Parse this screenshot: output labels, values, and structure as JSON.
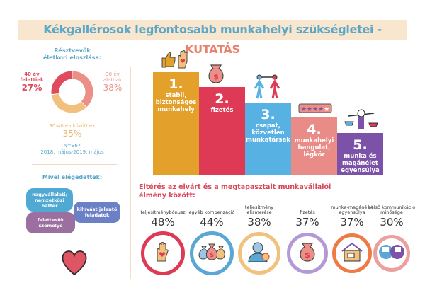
{
  "title": {
    "main": "Kékgallérosok legfontosabb munkahelyi szükségletei - ",
    "accent": "KUTATÁS"
  },
  "age": {
    "heading_1": "Résztvevők",
    "heading_2": "életkori eloszlása:",
    "segments": [
      {
        "label_1": "30 év",
        "label_2": "alattiak",
        "value": "38%",
        "pct": 38,
        "color": "#ec8f86"
      },
      {
        "label_1": "30-40 év közöttiek",
        "label_2": "",
        "value": "35%",
        "pct": 35,
        "color": "#f2c07e"
      },
      {
        "label_1": "40 év",
        "label_2": "felettiek",
        "value": "27%",
        "pct": 27,
        "color": "#e04a5e"
      }
    ],
    "n": "N=967",
    "period": "2018. május-2019. május"
  },
  "satisfied": {
    "heading": "Mivel elégedettek:",
    "items": [
      "nagyvállalati/ nemzetközi háttér",
      "kihívást jelentő feladatok",
      "felettesük személye"
    ]
  },
  "ranking": [
    {
      "num": "1.",
      "label": "stabil, biztonságos munkahely",
      "color": "#e3a02b",
      "icon": "thumbs-up-hand-heart-icon"
    },
    {
      "num": "2.",
      "label": "fizetés",
      "color": "#de3a55",
      "icon": "money-bag-icon"
    },
    {
      "num": "3.",
      "label": "csapat, közvetlen munkatársak",
      "color": "#58b1e3",
      "icon": "connected-people-icon"
    },
    {
      "num": "4.",
      "label": "munkahelyi hangulat, légkör",
      "color": "#e98b86",
      "icon": "star-rating-icon"
    },
    {
      "num": "5.",
      "label": "munka és magánélet egyensúlya",
      "color": "#7b52a8",
      "icon": "balance-scale-icon"
    }
  ],
  "gap": {
    "heading_1": "Eltérés az elvárt és a megtapasztalt munkavállalói",
    "heading_2": "élmény között:",
    "items": [
      {
        "label": "teljesítménybónusz",
        "value": "48%",
        "color": "#de3a55",
        "icon": "hand-heart-icon"
      },
      {
        "label": "egyéb kompenzáció",
        "value": "44%",
        "color": "#5aa7d6",
        "icon": "money-bags-icon"
      },
      {
        "label": "teljesítmény elismerése",
        "value": "38%",
        "color": "#f0c27e",
        "icon": "person-award-icon"
      },
      {
        "label": "fizetés",
        "value": "37%",
        "color": "#b39ad6",
        "icon": "money-bag-icon"
      },
      {
        "label": "munka-magánélet egyensúlya",
        "value": "37%",
        "color": "#ee7a45",
        "icon": "home-office-icon"
      },
      {
        "label": "belső kommunikáció minősége",
        "value": "30%",
        "color": "#eba0a0",
        "icon": "communication-icon"
      }
    ]
  }
}
